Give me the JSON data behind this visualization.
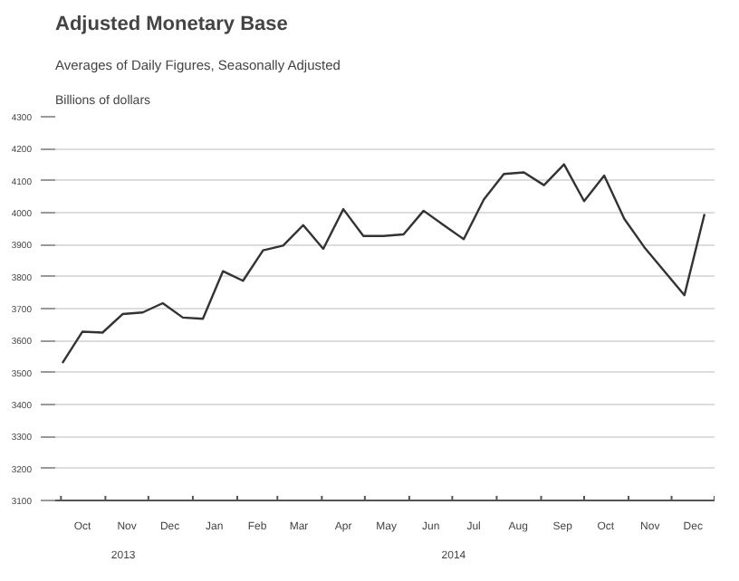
{
  "chart_data": {
    "type": "line",
    "title": "Adjusted Monetary Base",
    "subtitle": "Averages of Daily Figures, Seasonally Adjusted",
    "ylabel": "Billions of dollars",
    "x": [
      "2013-10-02",
      "2013-10-16",
      "2013-10-30",
      "2013-11-13",
      "2013-11-27",
      "2013-12-11",
      "2013-12-25",
      "2014-01-08",
      "2014-01-22",
      "2014-02-05",
      "2014-02-19",
      "2014-03-05",
      "2014-03-19",
      "2014-04-02",
      "2014-04-16",
      "2014-04-30",
      "2014-05-14",
      "2014-05-28",
      "2014-06-11",
      "2014-06-25",
      "2014-07-09",
      "2014-07-23",
      "2014-08-06",
      "2014-08-20",
      "2014-09-03",
      "2014-09-17",
      "2014-10-01",
      "2014-10-15",
      "2014-10-29",
      "2014-11-12",
      "2014-11-26",
      "2014-12-10",
      "2014-12-24"
    ],
    "series": [
      {
        "color": "#333333",
        "values": [
          3530,
          3628,
          3625,
          3683,
          3688,
          3717,
          3672,
          3668,
          3817,
          3787,
          3882,
          3897,
          3961,
          3887,
          4011,
          3927,
          3927,
          3932,
          4006,
          3961,
          3917,
          4041,
          4121,
          4126,
          4086,
          4151,
          4036,
          4116,
          3981,
          3892,
          3817,
          3742,
          3996
        ]
      }
    ],
    "xlim": [
      "2013-09-27",
      "2014-12-31"
    ],
    "xticks": [
      {
        "value": "2013-10-01",
        "label": null
      },
      {
        "value": "2013-10-16",
        "label": "Oct"
      },
      {
        "value": "2013-11-01",
        "label": null
      },
      {
        "value": "2013-11-16",
        "label": "Nov"
      },
      {
        "value": "2013-12-01",
        "label": null
      },
      {
        "value": "2013-12-16",
        "label": "Dec"
      },
      {
        "value": "2014-01-01",
        "label": null
      },
      {
        "value": "2014-01-16",
        "label": "Jan"
      },
      {
        "value": "2014-02-01",
        "label": null
      },
      {
        "value": "2014-02-15",
        "label": "Feb"
      },
      {
        "value": "2014-03-01",
        "label": null
      },
      {
        "value": "2014-03-16",
        "label": "Mar"
      },
      {
        "value": "2014-04-01",
        "label": null
      },
      {
        "value": "2014-04-16",
        "label": "Apr"
      },
      {
        "value": "2014-05-01",
        "label": null
      },
      {
        "value": "2014-05-16",
        "label": "May"
      },
      {
        "value": "2014-06-01",
        "label": null
      },
      {
        "value": "2014-06-16",
        "label": "Jun"
      },
      {
        "value": "2014-07-01",
        "label": null
      },
      {
        "value": "2014-07-16",
        "label": "Jul"
      },
      {
        "value": "2014-08-01",
        "label": null
      },
      {
        "value": "2014-08-16",
        "label": "Aug"
      },
      {
        "value": "2014-09-01",
        "label": null
      },
      {
        "value": "2014-09-16",
        "label": "Sep"
      },
      {
        "value": "2014-10-01",
        "label": null
      },
      {
        "value": "2014-10-16",
        "label": "Oct"
      },
      {
        "value": "2014-11-01",
        "label": null
      },
      {
        "value": "2014-11-16",
        "label": "Nov"
      },
      {
        "value": "2014-12-01",
        "label": null
      },
      {
        "value": "2014-12-16",
        "label": "Dec"
      },
      {
        "value": "2014-12-31",
        "label": null
      }
    ],
    "ylim": [
      3100,
      4300
    ],
    "yticks": [
      3100,
      3200,
      3300,
      3400,
      3500,
      3600,
      3700,
      3800,
      3900,
      4000,
      4100,
      4200,
      4300
    ],
    "annotations": [
      "2013",
      "2014"
    ],
    "grid": "y",
    "marker": "none",
    "line_style": "solid"
  }
}
